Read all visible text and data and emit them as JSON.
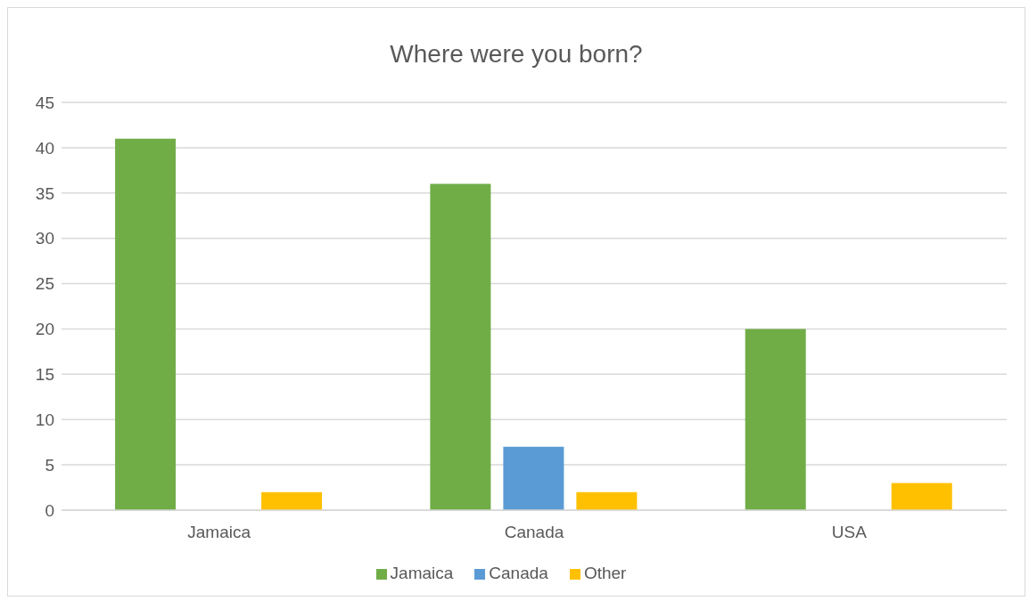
{
  "chart_data": {
    "type": "bar",
    "title": "Where were you born?",
    "categories": [
      "Jamaica",
      "Canada",
      "USA"
    ],
    "series": [
      {
        "name": "Jamaica",
        "color": "#70ad47",
        "values": [
          41,
          36,
          20
        ]
      },
      {
        "name": "Canada",
        "color": "#5b9bd5",
        "values": [
          null,
          7,
          null
        ]
      },
      {
        "name": "Other",
        "color": "#ffc000",
        "values": [
          2,
          2,
          3
        ]
      }
    ],
    "ylim": [
      0,
      45
    ],
    "yticks": [
      0,
      5,
      10,
      15,
      20,
      25,
      30,
      35,
      40,
      45
    ],
    "grid": "y",
    "legend": "bottom"
  }
}
